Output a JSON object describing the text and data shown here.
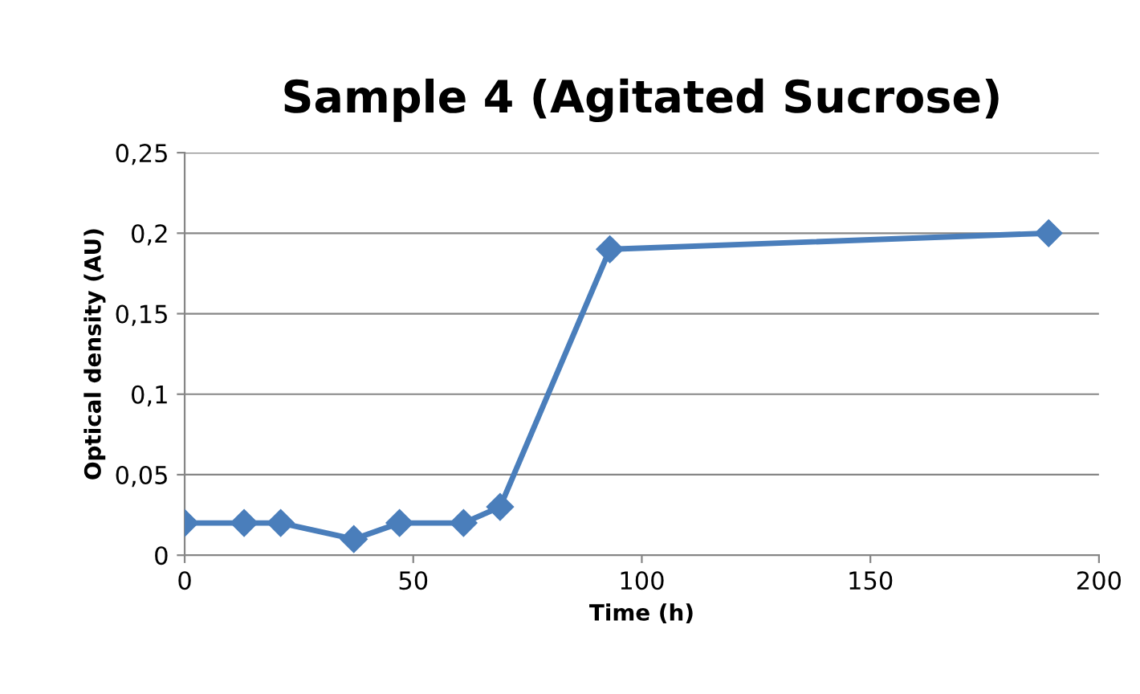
{
  "chart_data": {
    "type": "line",
    "title": "Sample 4 (Agitated Sucrose)",
    "xlabel": "Time (h)",
    "ylabel": "Optical density (AU)",
    "x": [
      0,
      13,
      21,
      37,
      47,
      61,
      69,
      93,
      189
    ],
    "series": [
      {
        "color": "#4a7ebb",
        "values": [
          0.02,
          0.02,
          0.02,
          0.01,
          0.02,
          0.02,
          0.03,
          0.19,
          0.2
        ]
      }
    ],
    "xlim": [
      0,
      200
    ],
    "xticks": [
      0,
      50,
      100,
      150,
      200
    ],
    "ylim": [
      0,
      0.25
    ],
    "yticks": [
      0,
      {
        "value": 0.05,
        "label": "0,05"
      },
      {
        "value": 0.1,
        "label": "0,1"
      },
      {
        "value": 0.15,
        "label": "0,15"
      },
      {
        "value": 0.2,
        "label": "0,2"
      },
      {
        "value": 0.25,
        "label": "0,25"
      }
    ],
    "grid": "y",
    "marker": "diamond",
    "line_style": "solid"
  }
}
